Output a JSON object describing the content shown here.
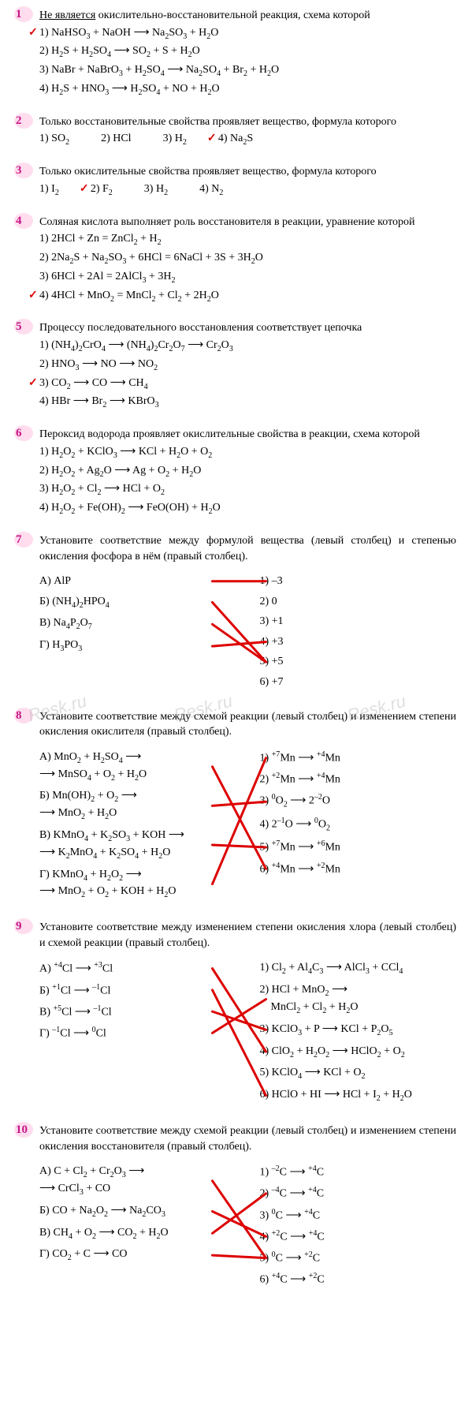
{
  "watermark": "Resk.ru",
  "line_color": "#d00",
  "line_width": 3,
  "questions": [
    {
      "n": "1",
      "prompt": "<span class='u'>Не является</span> окислительно-восстановительной реакция, схема которой",
      "opts": [
        {
          "t": "1) NaHSO<sub>3</sub> + NaOH ⟶ Na<sub>2</sub>SO<sub>3</sub> + H<sub>2</sub>O",
          "c": true
        },
        {
          "t": "2) H<sub>2</sub>S + H<sub>2</sub>SO<sub>4</sub> ⟶ SO<sub>2</sub> + S + H<sub>2</sub>O"
        },
        {
          "t": "3) NaBr + NaBrO<sub>3</sub> + H<sub>2</sub>SO<sub>4</sub> ⟶ Na<sub>2</sub>SO<sub>4</sub> + Br<sub>2</sub> + H<sub>2</sub>O"
        },
        {
          "t": "4) H<sub>2</sub>S + HNO<sub>3</sub> ⟶ H<sub>2</sub>SO<sub>4</sub> + NO + H<sub>2</sub>O"
        }
      ]
    },
    {
      "n": "2",
      "prompt": "Только восстановительные свойства проявляет вещество, формула которого",
      "inline": true,
      "opts": [
        {
          "t": "1) SO<sub>2</sub>"
        },
        {
          "t": "2) HCl"
        },
        {
          "t": "3) H<sub>2</sub>"
        },
        {
          "t": "4) Na<sub>2</sub>S",
          "c": true
        }
      ]
    },
    {
      "n": "3",
      "prompt": "Только окислительные свойства проявляет вещество, формула которого",
      "inline": true,
      "opts": [
        {
          "t": "1) I<sub>2</sub>"
        },
        {
          "t": "2) F<sub>2</sub>",
          "c": true
        },
        {
          "t": "3) H<sub>2</sub>"
        },
        {
          "t": "4) N<sub>2</sub>"
        }
      ]
    },
    {
      "n": "4",
      "prompt": "Соляная кислота выполняет роль восстановителя в реакции, уравнение которой",
      "opts": [
        {
          "t": "1) 2HCl + Zn = ZnCl<sub>2</sub> + H<sub>2</sub>"
        },
        {
          "t": "2) 2Na<sub>2</sub>S + Na<sub>2</sub>SO<sub>3</sub> + 6HCl = 6NaCl + 3S + 3H<sub>2</sub>O"
        },
        {
          "t": "3) 6HCl + 2Al = 2AlCl<sub>3</sub> + 3H<sub>2</sub>"
        },
        {
          "t": "4) 4HCl + MnO<sub>2</sub> = MnCl<sub>2</sub> + Cl<sub>2</sub> + 2H<sub>2</sub>O",
          "c": true
        }
      ]
    },
    {
      "n": "5",
      "prompt": "Процессу последовательного восстановления соответствует цепочка",
      "opts": [
        {
          "t": "1) (NH<sub>4</sub>)<sub>2</sub>CrO<sub>4</sub> ⟶ (NH<sub>4</sub>)<sub>2</sub>Cr<sub>2</sub>O<sub>7</sub> ⟶ Cr<sub>2</sub>O<sub>3</sub>"
        },
        {
          "t": "2) HNO<sub>3</sub> ⟶ NO ⟶ NO<sub>2</sub>"
        },
        {
          "t": "3) CO<sub>2</sub> ⟶ CO ⟶ CH<sub>4</sub>",
          "c": true
        },
        {
          "t": "4) HBr ⟶ Br<sub>2</sub> ⟶ KBrO<sub>3</sub>"
        }
      ]
    },
    {
      "n": "6",
      "prompt": "Пероксид водорода проявляет окислительные свойства в реакции, схема которой",
      "opts": [
        {
          "t": "1) H<sub>2</sub>O<sub>2</sub> + KClO<sub>3</sub> ⟶ KCl + H<sub>2</sub>O + O<sub>2</sub>"
        },
        {
          "t": "2) H<sub>2</sub>O<sub>2</sub> + Ag<sub>2</sub>O ⟶ Ag + O<sub>2</sub> + H<sub>2</sub>O"
        },
        {
          "t": "3) H<sub>2</sub>O<sub>2</sub> + Cl<sub>2</sub> ⟶ HCl + O<sub>2</sub>"
        },
        {
          "t": "4) H<sub>2</sub>O<sub>2</sub> + Fe(OH)<sub>2</sub> ⟶ FeO(OH) + H<sub>2</sub>O"
        }
      ]
    },
    {
      "n": "7",
      "prompt": "Установите соответствие между формулой вещества (левый столбец) и степенью окисления фосфора в нём (правый столбец).",
      "match": {
        "left": [
          "А) AlP",
          "Б) (NH<sub>4</sub>)<sub>2</sub>HPO<sub>4</sub>",
          "В) Na<sub>4</sub>P<sub>2</sub>O<sub>7</sub>",
          "Г) H<sub>3</sub>PO<sub>3</sub>"
        ],
        "right": [
          "1) –3",
          "2) 0",
          "3) +1",
          "4) +3",
          "5) +5",
          "6) +7"
        ],
        "lines": [
          [
            0,
            0
          ],
          [
            1,
            4
          ],
          [
            2,
            4
          ],
          [
            3,
            3
          ]
        ]
      }
    },
    {
      "n": "8",
      "prompt": "Установите соответствие между схемой реакции (левый столбец) и изменением степени окисления окислителя (правый столбец).",
      "match": {
        "left": [
          "А) MnO<sub>2</sub> + H<sub>2</sub>SO<sub>4</sub> ⟶<br>⟶ MnSO<sub>4</sub> + O<sub>2</sub> + H<sub>2</sub>O",
          "Б) Mn(OH)<sub>2</sub> + O<sub>2</sub> ⟶<br>⟶ MnO<sub>2</sub> + H<sub>2</sub>O",
          "В) KMnO<sub>4</sub> + K<sub>2</sub>SO<sub>3</sub> + KOH ⟶<br>⟶ K<sub>2</sub>MnO<sub>4</sub> + K<sub>2</sub>SO<sub>4</sub> + H<sub>2</sub>O",
          "Г) KMnO<sub>4</sub> + H<sub>2</sub>O<sub>2</sub> ⟶<br>⟶ MnO<sub>2</sub> + O<sub>2</sub> + KOH + H<sub>2</sub>O"
        ],
        "right": [
          "1) <sup>+7</sup>Mn ⟶ <sup>+4</sup>Mn",
          "2) <sup>+2</sup>Mn ⟶ <sup>+4</sup>Mn",
          "3) <sup>0</sup>O<sub>2</sub> ⟶ 2<sup>–2</sup>O",
          "4) 2<sup>–1</sup>O ⟶ <sup>0</sup>O<sub>2</sub>",
          "5) <sup>+7</sup>Mn ⟶ <sup>+6</sup>Mn",
          "6) <sup>+4</sup>Mn ⟶ <sup>+2</sup>Mn"
        ],
        "lines": [
          [
            0,
            5
          ],
          [
            1,
            2
          ],
          [
            2,
            4
          ],
          [
            3,
            0
          ]
        ]
      }
    },
    {
      "n": "9",
      "prompt": "Установите соответствие между изменением степени окисления хлора (левый столбец) и схемой реакции (правый столбец).",
      "match": {
        "left": [
          "А) <sup>+4</sup>Cl ⟶ <sup>+3</sup>Cl",
          "Б) <sup>+1</sup>Cl ⟶ <sup>–1</sup>Cl",
          "В) <sup>+5</sup>Cl ⟶ <sup>–1</sup>Cl",
          "Г) <sup>–1</sup>Cl ⟶ <sup>0</sup>Cl"
        ],
        "right": [
          "1) Cl<sub>2</sub> + Al<sub>4</sub>C<sub>3</sub> ⟶ AlCl<sub>3</sub> + CCl<sub>4</sub>",
          "2) HCl + MnO<sub>2</sub> ⟶<br>&nbsp;&nbsp;&nbsp;&nbsp;MnCl<sub>2</sub> + Cl<sub>2</sub> + H<sub>2</sub>O",
          "3) KClO<sub>3</sub> + P ⟶ KCl + P<sub>2</sub>O<sub>5</sub>",
          "4) ClO<sub>2</sub> + H<sub>2</sub>O<sub>2</sub> ⟶ HClO<sub>2</sub> + O<sub>2</sub>",
          "5) KClO<sub>4</sub> ⟶ KCl + O<sub>2</sub>",
          "6) HClO + HI ⟶ HCl + I<sub>2</sub> + H<sub>2</sub>O"
        ],
        "lines": [
          [
            0,
            3
          ],
          [
            1,
            5
          ],
          [
            2,
            2
          ],
          [
            3,
            1
          ]
        ]
      }
    },
    {
      "n": "10",
      "prompt": "Установите соответствие между схемой реакции (левый столбец) и изменением степени окисления восстановителя (правый столбец).",
      "match": {
        "left": [
          "А) C + Cl<sub>2</sub> + Cr<sub>2</sub>O<sub>3</sub> ⟶<br>⟶ CrCl<sub>3</sub> + CO",
          "Б) CO + Na<sub>2</sub>O<sub>2</sub> ⟶ Na<sub>2</sub>CO<sub>3</sub>",
          "В) CH<sub>4</sub> + O<sub>2</sub> ⟶ CO<sub>2</sub> + H<sub>2</sub>O",
          "Г) CO<sub>2</sub> + C ⟶ CO"
        ],
        "right": [
          "1) <sup>–2</sup>C ⟶ <sup>+4</sup>C",
          "2) <sup>–4</sup>C ⟶ <sup>+4</sup>C",
          "3) <sup>0</sup>C ⟶ <sup>+4</sup>C",
          "4) <sup>+2</sup>C ⟶ <sup>+4</sup>C",
          "5) <sup>0</sup>C ⟶ <sup>+2</sup>C",
          "6) <sup>+4</sup>C ⟶ <sup>+2</sup>C"
        ],
        "lines": [
          [
            0,
            4
          ],
          [
            1,
            3
          ],
          [
            2,
            1
          ],
          [
            3,
            4
          ]
        ]
      }
    }
  ]
}
